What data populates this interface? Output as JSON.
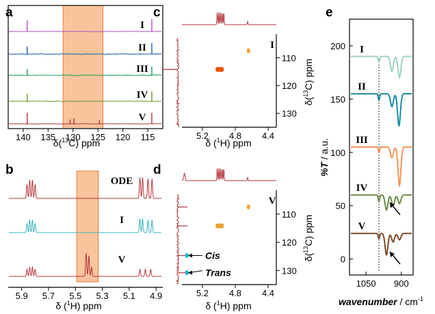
{
  "colors": {
    "purple": "#b04fc4",
    "blue": "#1f5fae",
    "green": "#22a05a",
    "olive": "#6b9a2a",
    "red": "#b2333a",
    "teal": "#35b3b8",
    "shade": "#f7b07a",
    "shade_edge": "#e07a3a",
    "e1": "#9fd1c4",
    "e2": "#1a8aa3",
    "e3": "#f4955a",
    "e4": "#6d8a4a",
    "e5": "#7a4a2a"
  },
  "chart_data": [
    {
      "panel": "a",
      "type": "line",
      "xlabel": "δ(13C) ppm",
      "x_ticks": [
        "140",
        "135",
        "130",
        "125",
        "120",
        "115"
      ],
      "xlim": [
        143,
        112
      ],
      "highlight_range": [
        132,
        124
      ],
      "series": [
        {
          "name": "I",
          "color_key": "purple",
          "peaks": [
            {
              "x": 139.2,
              "h": 0.9
            },
            {
              "x": 114.2,
              "h": 1.0
            }
          ],
          "noise": 0.2
        },
        {
          "name": "II",
          "color_key": "blue",
          "peaks": [
            {
              "x": 139.2,
              "h": 0.6
            },
            {
              "x": 114.2,
              "h": 0.9
            }
          ],
          "noise": 0.6
        },
        {
          "name": "III",
          "color_key": "green",
          "peaks": [
            {
              "x": 139.2,
              "h": 0.5
            },
            {
              "x": 114.2,
              "h": 0.7
            }
          ],
          "noise": 0.6
        },
        {
          "name": "IV",
          "color_key": "olive",
          "peaks": [
            {
              "x": 139.2,
              "h": 0.6
            },
            {
              "x": 114.2,
              "h": 0.8
            }
          ],
          "noise": 0.4
        },
        {
          "name": "V",
          "color_key": "red",
          "peaks": [
            {
              "x": 139.2,
              "h": 0.9
            },
            {
              "x": 130.6,
              "h": 0.35
            },
            {
              "x": 129.8,
              "h": 0.45
            },
            {
              "x": 124.7,
              "h": 0.3
            },
            {
              "x": 114.2,
              "h": 0.9
            }
          ],
          "noise": 0.2
        }
      ]
    },
    {
      "panel": "b",
      "type": "line",
      "xlabel": "δ (1H) ppm",
      "x_ticks": [
        "5.9",
        "5.7",
        "5.5",
        "5.3",
        "5.1",
        "4.9"
      ],
      "xlim": [
        6.0,
        4.85
      ],
      "highlight_range": [
        5.49,
        5.33
      ],
      "series": [
        {
          "name": "ODE",
          "color_key": "red",
          "peaks": [
            {
              "x": 5.86,
              "h": 0.6
            },
            {
              "x": 5.84,
              "h": 0.8
            },
            {
              "x": 5.82,
              "h": 0.8
            },
            {
              "x": 5.8,
              "h": 0.6
            },
            {
              "x": 5.02,
              "h": 0.9
            },
            {
              "x": 5.0,
              "h": 0.9
            },
            {
              "x": 4.96,
              "h": 0.85
            },
            {
              "x": 4.93,
              "h": 0.85
            }
          ]
        },
        {
          "name": "I",
          "color_key": "teal",
          "peaks": [
            {
              "x": 5.86,
              "h": 0.4
            },
            {
              "x": 5.84,
              "h": 0.55
            },
            {
              "x": 5.82,
              "h": 0.55
            },
            {
              "x": 5.8,
              "h": 0.4
            },
            {
              "x": 5.02,
              "h": 0.6
            },
            {
              "x": 5.0,
              "h": 0.6
            },
            {
              "x": 4.96,
              "h": 0.55
            },
            {
              "x": 4.93,
              "h": 0.55
            }
          ]
        },
        {
          "name": "V",
          "color_key": "red",
          "peaks": [
            {
              "x": 5.86,
              "h": 0.3
            },
            {
              "x": 5.84,
              "h": 0.4
            },
            {
              "x": 5.82,
              "h": 0.4
            },
            {
              "x": 5.8,
              "h": 0.3
            },
            {
              "x": 5.42,
              "h": 1.0
            },
            {
              "x": 5.4,
              "h": 0.9
            },
            {
              "x": 5.38,
              "h": 0.4
            },
            {
              "x": 5.02,
              "h": 0.3
            },
            {
              "x": 4.98,
              "h": 0.3
            },
            {
              "x": 4.94,
              "h": 0.3
            }
          ]
        }
      ]
    },
    {
      "panel": "c",
      "type": "heatmap",
      "label": "I",
      "xlabel": "δ (1H) ppm",
      "ylabel": "δ(13C) ppm",
      "x_ticks": [
        "5.2",
        "4.8",
        "4.4"
      ],
      "y_ticks": [
        "110",
        "120",
        "130"
      ],
      "xlim": [
        5.45,
        4.3
      ],
      "ylim": [
        103,
        135
      ],
      "cross_peaks": [
        {
          "x": 4.99,
          "y": 114.2,
          "w": 0.1,
          "color": "#e8550a"
        },
        {
          "x": 4.65,
          "y": 107.5,
          "w": 0.02,
          "color": "#f7a430"
        }
      ]
    },
    {
      "panel": "d",
      "type": "heatmap",
      "label": "V",
      "xlabel": "δ (1H) ppm",
      "ylabel": "δ(13C) ppm",
      "x_ticks": [
        "5.2",
        "4.8",
        "4.4"
      ],
      "y_ticks": [
        "110",
        "120",
        "130"
      ],
      "xlim": [
        5.45,
        4.3
      ],
      "ylim": [
        103,
        135
      ],
      "cross_peaks": [
        {
          "x": 4.99,
          "y": 114.2,
          "w": 0.1,
          "color": "#e8a030"
        },
        {
          "x": 4.65,
          "y": 107.5,
          "w": 0.02,
          "color": "#f7a430"
        },
        {
          "x": 5.4,
          "y": 124.7,
          "w": 0.02,
          "color": "#1ab4d8"
        },
        {
          "x": 5.4,
          "y": 130.8,
          "w": 0.02,
          "color": "#1ab4d8"
        }
      ],
      "annotations": [
        {
          "text": "Cis",
          "y": 124.7
        },
        {
          "text": "Trans",
          "y": 130.8
        }
      ]
    },
    {
      "panel": "e",
      "type": "line",
      "xlabel": "wavenumber / cm-1",
      "ylabel": "%T / a.u.",
      "x_ticks": [
        "1050",
        "900"
      ],
      "y_ticks": [
        "0",
        "50",
        "100",
        "150",
        "200"
      ],
      "xlim": [
        1120,
        850
      ],
      "ylim": [
        -15,
        225
      ],
      "dotted_line_x": 995,
      "series": [
        {
          "name": "I",
          "color_key": "e1",
          "baseline": 190,
          "dips": [
            {
              "x": 995,
              "d": 5
            },
            {
              "x": 940,
              "d": 14
            },
            {
              "x": 908,
              "d": 20
            }
          ]
        },
        {
          "name": "II",
          "color_key": "e2",
          "baseline": 155,
          "dips": [
            {
              "x": 995,
              "d": 6
            },
            {
              "x": 940,
              "d": 12
            },
            {
              "x": 910,
              "d": 30
            }
          ]
        },
        {
          "name": "III",
          "color_key": "e3",
          "baseline": 105,
          "dips": [
            {
              "x": 995,
              "d": 5
            },
            {
              "x": 940,
              "d": 10
            },
            {
              "x": 908,
              "d": 36
            }
          ]
        },
        {
          "name": "IV",
          "color_key": "e4",
          "baseline": 60,
          "dips": [
            {
              "x": 995,
              "d": 6
            },
            {
              "x": 963,
              "d": 14
            },
            {
              "x": 935,
              "d": 10
            },
            {
              "x": 908,
              "d": 8
            }
          ]
        },
        {
          "name": "V",
          "color_key": "e5",
          "baseline": 24,
          "dips": [
            {
              "x": 995,
              "d": 5
            },
            {
              "x": 963,
              "d": 20
            },
            {
              "x": 935,
              "d": 8
            },
            {
              "x": 908,
              "d": 6
            }
          ]
        }
      ]
    }
  ],
  "labels": {
    "a": "a",
    "b": "b",
    "c": "c",
    "d": "d",
    "e": "e",
    "a_x_pre": "δ(",
    "a_x_sup": "13",
    "a_x_post": "C) ppm",
    "h_x_pre": "δ (",
    "h_x_sup": "1",
    "h_x_post": "H) ppm",
    "c_y_pre": "δ(",
    "c_y_sup": "13",
    "c_y_post": "C) ppm",
    "e_y_T": "%T",
    "e_y_post": " / a.u.",
    "e_x_pre": "wavenumber",
    "e_x_post": " / cm",
    "e_x_sup": "-1"
  }
}
